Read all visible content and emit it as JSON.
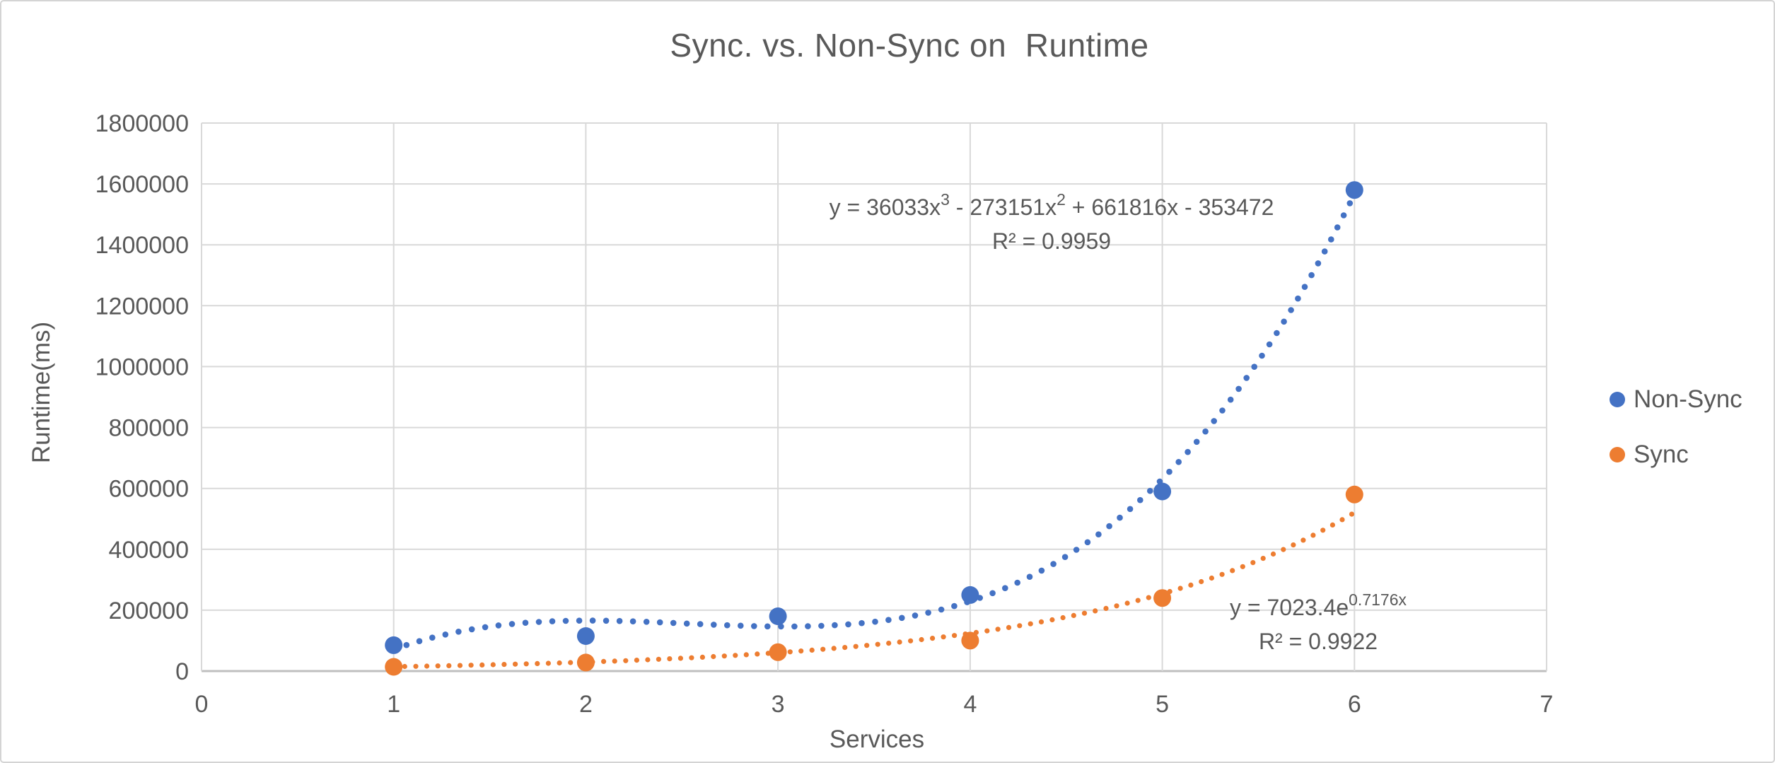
{
  "colors": {
    "non_sync": "#4472C4",
    "sync": "#ED7D31",
    "text": "#595959",
    "gridline": "#D9D9D9",
    "axis_line": "#BFBFBF",
    "background": "#FFFFFF"
  },
  "chart_data": {
    "type": "scatter",
    "title": "Sync. vs. Non-Sync on  Runtime",
    "xlabel": "Services",
    "ylabel": "Runtime(ms)",
    "xlim": [
      0,
      7
    ],
    "ylim": [
      0,
      1800000
    ],
    "x_ticks": [
      0,
      1,
      2,
      3,
      4,
      5,
      6,
      7
    ],
    "y_ticks": [
      0,
      200000,
      400000,
      600000,
      800000,
      1000000,
      1200000,
      1400000,
      1600000,
      1800000
    ],
    "grid": true,
    "legend_position": "right-center",
    "series": [
      {
        "name": "Non-Sync",
        "color": "#4472C4",
        "marker": "circle",
        "x": [
          1,
          2,
          3,
          4,
          5,
          6
        ],
        "y": [
          85000,
          115000,
          180000,
          250000,
          590000,
          1580000
        ],
        "trendline": {
          "type": "polynomial",
          "degree": 3,
          "coefficients": [
            36033,
            -273151,
            661816,
            -353472
          ],
          "range": [
            1,
            6
          ],
          "style": "dotted",
          "equation": "y = 36033x³ - 273151x² + 661816x - 353472",
          "equation_parts": [
            {
              "t": "y = 36033x"
            },
            {
              "t": "3",
              "sup": true
            },
            {
              "t": " - 273151x"
            },
            {
              "t": "2",
              "sup": true
            },
            {
              "t": " + 661816x - 353472"
            }
          ],
          "r_squared_label": "R² = 0.9959"
        }
      },
      {
        "name": "Sync",
        "color": "#ED7D31",
        "marker": "circle",
        "x": [
          1,
          2,
          3,
          4,
          5,
          6
        ],
        "y": [
          14000,
          28000,
          62000,
          100000,
          240000,
          580000
        ],
        "trendline": {
          "type": "exponential",
          "a": 7023.4,
          "b": 0.7176,
          "range": [
            1,
            6
          ],
          "style": "dotted",
          "equation": "y = 7023.4e^(0.7176x)",
          "equation_parts": [
            {
              "t": "y = 7023.4e"
            },
            {
              "t": "0.7176x",
              "sup": true
            }
          ],
          "r_squared_label": "R² = 0.9922"
        }
      }
    ]
  }
}
